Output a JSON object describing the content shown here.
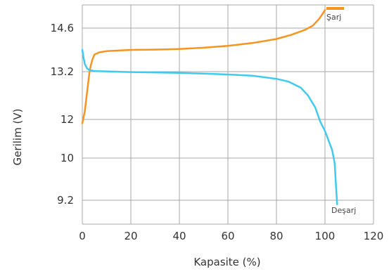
{
  "chart_data": {
    "type": "line",
    "title": "",
    "xlabel": "Kapasite (%)",
    "ylabel": "Gerilim (V)",
    "xlim": [
      0,
      120
    ],
    "x_ticks": [
      "0",
      "20",
      "40",
      "60",
      "80",
      "100",
      "120"
    ],
    "y_tick_labels": [
      "14.6",
      "13.2",
      "12",
      "10",
      "9.2"
    ],
    "grid": true,
    "series": [
      {
        "name": "Şarj",
        "color": "#f7941d",
        "points": [
          [
            0,
            11.8
          ],
          [
            1,
            12.2
          ],
          [
            2,
            12.7
          ],
          [
            3,
            13.2
          ],
          [
            3.5,
            13.4
          ],
          [
            4.2,
            13.6
          ],
          [
            5,
            13.75
          ],
          [
            7,
            13.82
          ],
          [
            10,
            13.86
          ],
          [
            20,
            13.9
          ],
          [
            30,
            13.91
          ],
          [
            40,
            13.93
          ],
          [
            50,
            13.97
          ],
          [
            60,
            14.03
          ],
          [
            70,
            14.12
          ],
          [
            80,
            14.25
          ],
          [
            86,
            14.38
          ],
          [
            92,
            14.55
          ],
          [
            95,
            14.7
          ],
          [
            97.5,
            14.95
          ],
          [
            99,
            15.15
          ],
          [
            100,
            15.3
          ]
        ]
      },
      {
        "name": "Deşarj",
        "color": "#3fcbef",
        "points": [
          [
            0,
            13.9
          ],
          [
            0.4,
            13.7
          ],
          [
            1,
            13.45
          ],
          [
            2,
            13.3
          ],
          [
            3,
            13.25
          ],
          [
            5,
            13.22
          ],
          [
            10,
            13.21
          ],
          [
            20,
            13.19
          ],
          [
            30,
            13.18
          ],
          [
            40,
            13.17
          ],
          [
            50,
            13.15
          ],
          [
            60,
            13.13
          ],
          [
            70,
            13.1
          ],
          [
            80,
            13.02
          ],
          [
            85,
            12.95
          ],
          [
            90,
            12.8
          ],
          [
            93,
            12.6
          ],
          [
            96,
            12.3
          ],
          [
            98,
            11.9
          ],
          [
            100,
            11.4
          ],
          [
            101.5,
            10.9
          ],
          [
            103,
            10.4
          ],
          [
            104,
            9.9
          ],
          [
            104.5,
            9.5
          ],
          [
            105,
            9.05
          ]
        ]
      }
    ]
  }
}
